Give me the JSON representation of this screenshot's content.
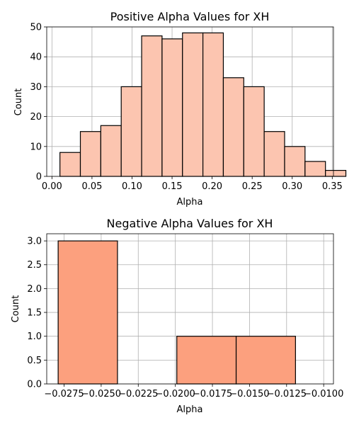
{
  "chart_data": [
    {
      "type": "bar",
      "title": "Positive Alpha Values for XH",
      "xlabel": "Alpha",
      "ylabel": "Count",
      "xlim": [
        -0.0065,
        0.3515
      ],
      "ylim": [
        0,
        50
      ],
      "bar_color": "#fcc5b0",
      "edge_color": "#000000",
      "grid": true,
      "xticks": [
        0.0,
        0.05,
        0.1,
        0.15,
        0.2,
        0.25,
        0.3,
        0.35
      ],
      "xtick_labels": [
        "0.00",
        "0.05",
        "0.10",
        "0.15",
        "0.20",
        "0.25",
        "0.30",
        "0.35"
      ],
      "yticks": [
        0,
        10,
        20,
        30,
        40,
        50
      ],
      "ytick_labels": [
        "0",
        "10",
        "20",
        "30",
        "40",
        "50"
      ],
      "bins": [
        {
          "x0": 0.01,
          "x1": 0.0355,
          "value": 8
        },
        {
          "x0": 0.0355,
          "x1": 0.061,
          "value": 15
        },
        {
          "x0": 0.061,
          "x1": 0.0865,
          "value": 17
        },
        {
          "x0": 0.0865,
          "x1": 0.112,
          "value": 30
        },
        {
          "x0": 0.112,
          "x1": 0.1375,
          "value": 47
        },
        {
          "x0": 0.1375,
          "x1": 0.163,
          "value": 46
        },
        {
          "x0": 0.163,
          "x1": 0.1885,
          "value": 48
        },
        {
          "x0": 0.1885,
          "x1": 0.214,
          "value": 48
        },
        {
          "x0": 0.214,
          "x1": 0.2395,
          "value": 33
        },
        {
          "x0": 0.2395,
          "x1": 0.265,
          "value": 30
        },
        {
          "x0": 0.265,
          "x1": 0.2905,
          "value": 15
        },
        {
          "x0": 0.2905,
          "x1": 0.316,
          "value": 10
        },
        {
          "x0": 0.316,
          "x1": 0.3415,
          "value": 5
        },
        {
          "x0": 0.3415,
          "x1": 0.367,
          "value": 2
        }
      ]
    },
    {
      "type": "bar",
      "title": "Negative Alpha Values for XH",
      "xlabel": "Alpha",
      "ylabel": "Count",
      "xlim": [
        -0.02867,
        -0.00934
      ],
      "ylim": [
        0,
        3.15
      ],
      "bar_color": "#fca07e",
      "edge_color": "#000000",
      "grid": true,
      "xticks": [
        -0.0275,
        -0.025,
        -0.0225,
        -0.02,
        -0.0175,
        -0.015,
        -0.0125,
        -0.01
      ],
      "xtick_labels": [
        "−0.0275",
        "−0.0250",
        "−0.0225",
        "−0.0200",
        "−0.0175",
        "−0.0150",
        "−0.0125",
        "−0.0100"
      ],
      "yticks": [
        0,
        0.5,
        1.0,
        1.5,
        2.0,
        2.5,
        3.0
      ],
      "ytick_labels": [
        "0.0",
        "0.5",
        "1.0",
        "1.5",
        "2.0",
        "2.5",
        "3.0"
      ],
      "bins": [
        {
          "x0": -0.0279,
          "x1": -0.0239,
          "value": 3
        },
        {
          "x0": -0.0239,
          "x1": -0.0199,
          "value": 0
        },
        {
          "x0": -0.0199,
          "x1": -0.0159,
          "value": 1
        },
        {
          "x0": -0.0159,
          "x1": -0.0119,
          "value": 1
        }
      ]
    }
  ]
}
